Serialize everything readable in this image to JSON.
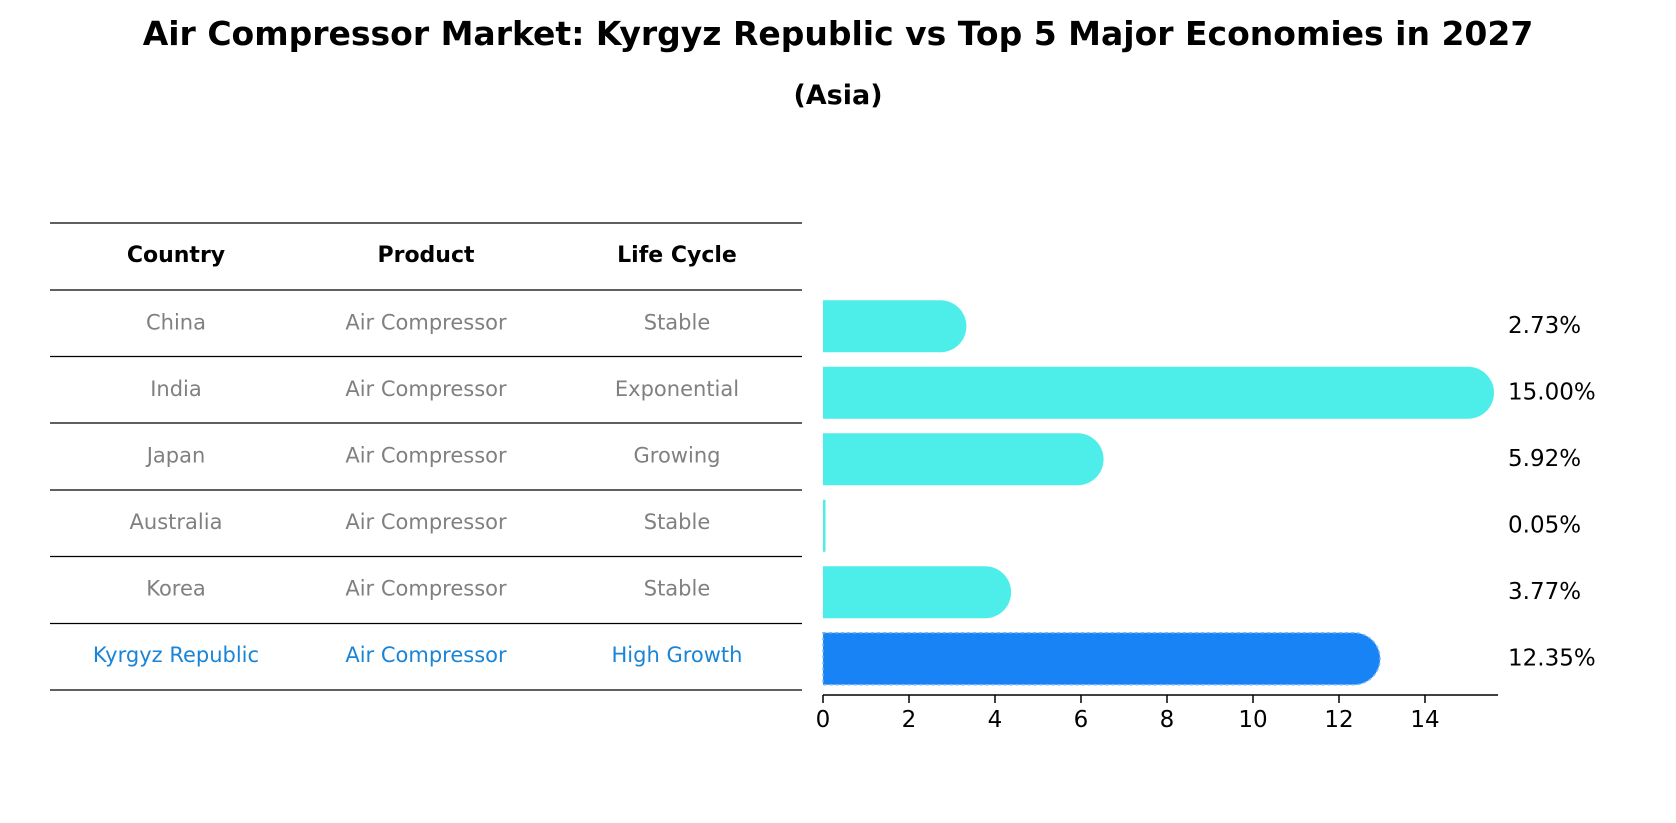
{
  "header": {
    "title": "Air Compressor Market: Kyrgyz Republic vs Top 5 Major Economies in 2027",
    "subtitle": "(Asia)"
  },
  "table": {
    "columns": [
      "Country",
      "Product",
      "Life Cycle"
    ],
    "rows": [
      {
        "country": "China",
        "product": "Air Compressor",
        "life_cycle": "Stable",
        "highlight": false
      },
      {
        "country": "India",
        "product": "Air Compressor",
        "life_cycle": "Exponential",
        "highlight": false
      },
      {
        "country": "Japan",
        "product": "Air Compressor",
        "life_cycle": "Growing",
        "highlight": false
      },
      {
        "country": "Australia",
        "product": "Air Compressor",
        "life_cycle": "Stable",
        "highlight": false
      },
      {
        "country": "Korea",
        "product": "Air Compressor",
        "life_cycle": "Stable",
        "highlight": false
      },
      {
        "country": "Kyrgyz Republic",
        "product": "Air Compressor",
        "life_cycle": "High Growth",
        "highlight": true
      }
    ]
  },
  "chart_data": {
    "type": "bar",
    "orientation": "horizontal",
    "categories": [
      "China",
      "India",
      "Japan",
      "Australia",
      "Korea",
      "Kyrgyz Republic"
    ],
    "values": [
      2.73,
      15.0,
      5.92,
      0.05,
      3.77,
      12.35
    ],
    "value_labels": [
      "2.73%",
      "15.00%",
      "5.92%",
      "0.05%",
      "3.77%",
      "12.35%"
    ],
    "highlight": [
      false,
      false,
      false,
      false,
      false,
      true
    ],
    "xlim": [
      0,
      15.8
    ],
    "xticks": [
      0,
      2,
      4,
      6,
      8,
      10,
      12,
      14
    ],
    "title": "Air Compressor Market: Kyrgyz Republic vs Top 5 Major Economies in 2027",
    "xlabel": "",
    "ylabel": ""
  },
  "colors": {
    "bar": "#4DEEEA",
    "highlight_bar": "#1783F5",
    "muted_text": "#808080",
    "highlight_text": "#1A85D6",
    "rule": "#000000",
    "axis": "#000000"
  }
}
